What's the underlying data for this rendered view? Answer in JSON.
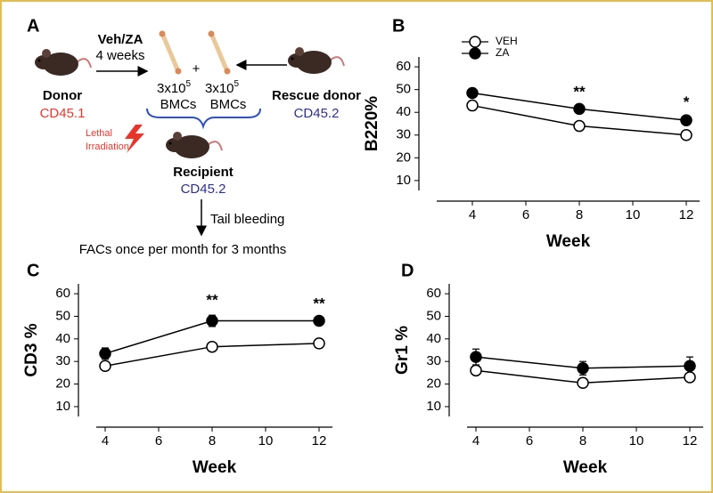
{
  "diagram": {
    "panel_label": "A",
    "treatment": "Veh/ZA",
    "duration": "4 weeks",
    "donor": {
      "label": "Donor",
      "marker": "CD45.1"
    },
    "plus": "+",
    "bmcs": [
      {
        "count": "3x10",
        "exponent": "5",
        "label": "BMCs"
      },
      {
        "count": "3x10",
        "exponent": "5",
        "label": "BMCs"
      }
    ],
    "rescue_donor": {
      "label": "Rescue donor",
      "marker": "CD45.2"
    },
    "irradiation": [
      "Lethal",
      "Irradiation"
    ],
    "recipient": {
      "label": "Recipient",
      "marker": "CD45.2"
    },
    "bleeding": "Tail bleeding",
    "analysis": "FACs once per month for 3 months"
  },
  "chart_data": [
    {
      "type": "line",
      "panel_label": "B",
      "x_label": "Week",
      "y_label": "B220%",
      "x": [
        4,
        8,
        12
      ],
      "xlim": [
        2,
        12.5
      ],
      "xticks": [
        4,
        6,
        8,
        10,
        12
      ],
      "ylim": [
        8,
        62
      ],
      "yticks": [
        10,
        20,
        30,
        40,
        50,
        60
      ],
      "legend": true,
      "series": [
        {
          "name": "VEH",
          "color": "#ffffff",
          "values": [
            43,
            34,
            30
          ],
          "errors": [
            1,
            1,
            1
          ]
        },
        {
          "name": "ZA",
          "color": "#000000",
          "values": [
            48.5,
            41.5,
            36.5
          ],
          "errors": [
            1.5,
            1,
            1.5
          ]
        }
      ],
      "annotations": [
        {
          "x": 8,
          "text": "**"
        },
        {
          "x": 12,
          "text": "*"
        }
      ]
    },
    {
      "type": "line",
      "panel_label": "C",
      "x_label": "Week",
      "y_label": "CD3 %",
      "x": [
        4,
        8,
        12
      ],
      "xlim": [
        3,
        12.5
      ],
      "xticks": [
        4,
        6,
        8,
        10,
        12
      ],
      "ylim": [
        8,
        62
      ],
      "yticks": [
        10,
        20,
        30,
        40,
        50,
        60
      ],
      "legend": false,
      "series": [
        {
          "color": "#ffffff",
          "values": [
            28,
            36.5,
            38
          ],
          "errors": [
            1,
            1.5,
            2
          ]
        },
        {
          "color": "#000000",
          "values": [
            33.5,
            48,
            48
          ],
          "errors": [
            2.5,
            2.5,
            1
          ]
        }
      ],
      "annotations": [
        {
          "x": 8,
          "text": "**"
        },
        {
          "x": 12,
          "text": "**"
        }
      ]
    },
    {
      "type": "line",
      "panel_label": "D",
      "x_label": "Week",
      "y_label": "Gr1 %",
      "x": [
        4,
        8,
        12
      ],
      "xlim": [
        3,
        12.5
      ],
      "xticks": [
        4,
        6,
        8,
        10,
        12
      ],
      "ylim": [
        8,
        62
      ],
      "yticks": [
        10,
        20,
        30,
        40,
        50,
        60
      ],
      "legend": false,
      "series": [
        {
          "color": "#ffffff",
          "values": [
            26,
            20.5,
            23
          ],
          "errors": [
            1.5,
            1,
            1.5
          ]
        },
        {
          "color": "#000000",
          "values": [
            32,
            27,
            28
          ],
          "errors": [
            3.5,
            3,
            4
          ]
        }
      ],
      "annotations": []
    }
  ]
}
